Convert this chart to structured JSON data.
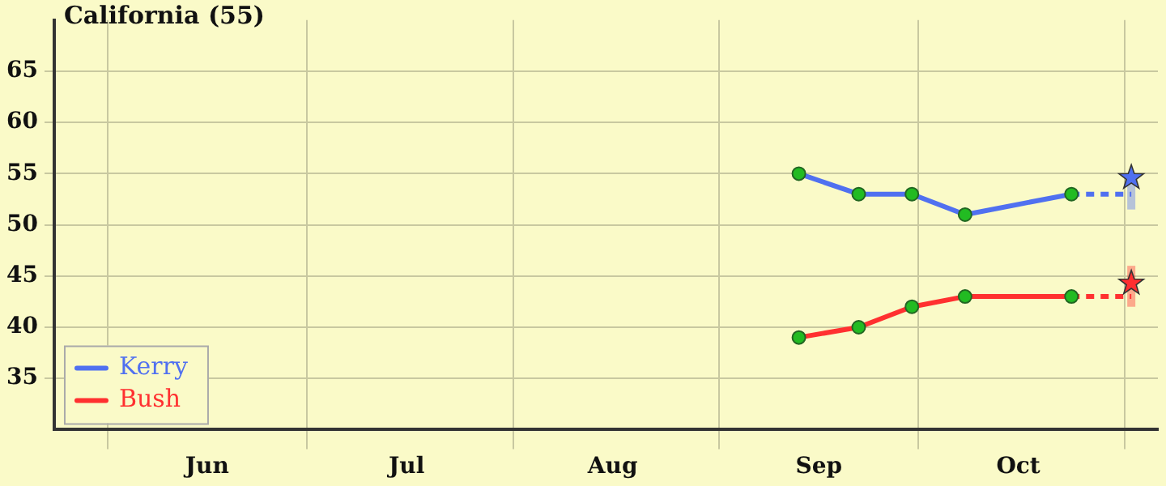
{
  "chart_data": {
    "type": "line",
    "title": "California (55)",
    "xlim": [
      "--05-24",
      "--11-06"
    ],
    "xticks": [
      {
        "value": "--06-01",
        "label": null
      },
      {
        "value": "--06-16",
        "label": "Jun"
      },
      {
        "value": "--07-01",
        "label": null
      },
      {
        "value": "--07-16",
        "label": "Jul"
      },
      {
        "value": "--08-01",
        "label": null
      },
      {
        "value": "--08-16",
        "label": "Aug"
      },
      {
        "value": "--09-01",
        "label": null
      },
      {
        "value": "--09-16",
        "label": "Sep"
      },
      {
        "value": "--10-01",
        "label": null
      },
      {
        "value": "--10-16",
        "label": "Oct"
      },
      {
        "value": "--11-01",
        "label": null
      }
    ],
    "ylim": [
      30,
      70
    ],
    "yticks": [
      35,
      40,
      45,
      50,
      55,
      60,
      65
    ],
    "grid": true,
    "legend": "bottom left",
    "marker": "circle",
    "series": [
      {
        "name": "Kerry",
        "color": "#5070f0",
        "x": [
          "--09-13",
          "--09-22",
          "--09-30",
          "--10-08",
          "--10-24"
        ],
        "values": [
          55,
          53,
          53,
          51,
          53
        ]
      },
      {
        "name": "Bush",
        "color": "#ff3030",
        "x": [
          "--09-13",
          "--09-22",
          "--09-30",
          "--10-08",
          "--10-24"
        ],
        "values": [
          39,
          40,
          42,
          43,
          43
        ]
      },
      {
        "type": "line",
        "line_style": "dashed",
        "marker": "none",
        "color": "#5070f0",
        "x": [
          "--10-24",
          "--11-02"
        ],
        "values": [
          53,
          53
        ]
      },
      {
        "type": "line",
        "line_style": "dashed",
        "marker": "none",
        "color": "#ff3030",
        "x": [
          "--10-24",
          "--11-02"
        ],
        "values": [
          43,
          43
        ]
      },
      {
        "type": "scatter",
        "marker": "star",
        "color": "#5070f0",
        "x": [
          "--11-02"
        ],
        "values": [
          54.6
        ],
        "errors": [
          [
            51.5,
            55
          ]
        ]
      },
      {
        "type": "scatter",
        "marker": "star",
        "color": "#ff3030",
        "x": [
          "--11-02"
        ],
        "values": [
          44.3
        ],
        "errors": [
          [
            42,
            46
          ]
        ]
      }
    ]
  }
}
